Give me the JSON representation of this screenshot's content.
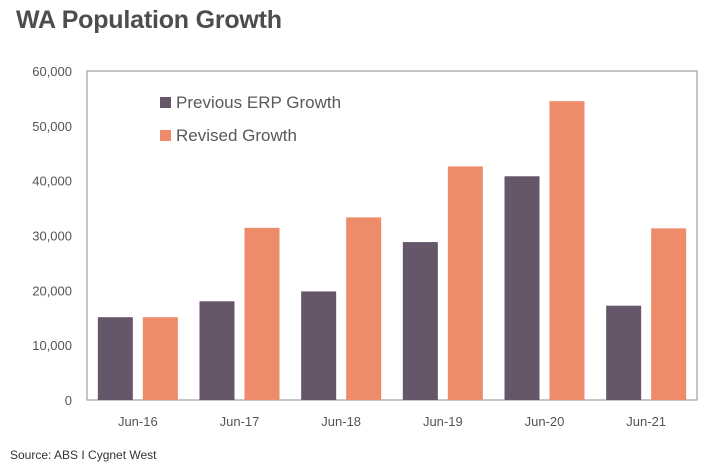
{
  "chart_data": {
    "type": "bar",
    "title": "WA Population Growth",
    "xlabel": "",
    "ylabel": "",
    "categories": [
      "Jun-16",
      "Jun-17",
      "Jun-18",
      "Jun-19",
      "Jun-20",
      "Jun-21"
    ],
    "series": [
      {
        "name": "Previous ERP Growth",
        "color": "#65566a",
        "values": [
          15100,
          18000,
          19800,
          28800,
          40800,
          17200
        ]
      },
      {
        "name": "Revised Growth",
        "color": "#ee8b6a",
        "values": [
          15100,
          31400,
          33300,
          42600,
          54500,
          31300
        ]
      }
    ],
    "ylim": [
      0,
      60000
    ],
    "yticks": [
      "0",
      "10,000",
      "20,000",
      "30,000",
      "40,000",
      "50,000",
      "60,000"
    ],
    "ytick_values": [
      0,
      10000,
      20000,
      30000,
      40000,
      50000,
      60000
    ],
    "grid": false,
    "legend_position": "top-left"
  },
  "source": "Source: ABS I Cygnet West",
  "colors": {
    "axis": "#8c8c8c",
    "tick_text": "#555555",
    "legend_text": "#595959"
  }
}
